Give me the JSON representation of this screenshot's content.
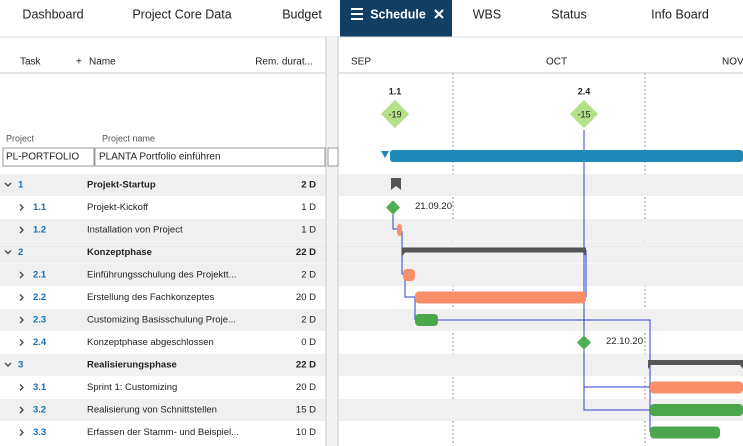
{
  "tabs": [
    "Dashboard",
    "Project Core Data",
    "Budget",
    "Schedule",
    "WBS",
    "Status",
    "Info Board"
  ],
  "columns": {
    "task": "Task",
    "add": "+",
    "name": "Name",
    "duration": "Rem. durat..."
  },
  "project": {
    "label_id": "Project",
    "label_name": "Project name",
    "id": "PL-PORTFOLIO",
    "name": "PLANTA Portfolio einführen"
  },
  "timeline": {
    "months": [
      "SEP",
      "OCT",
      "NOV"
    ],
    "milestones": [
      {
        "label": "1.1",
        "value": "-19"
      },
      {
        "label": "2.4",
        "value": "-15"
      }
    ]
  },
  "tasks": [
    {
      "id": "1",
      "name": "Projekt-Startup",
      "duration": "2 D"
    },
    {
      "id": "1.1",
      "name": "Projekt-Kickoff",
      "duration": "1 D",
      "date": "21.09.20"
    },
    {
      "id": "1.2",
      "name": "Installation von Project",
      "duration": "1 D"
    },
    {
      "id": "2",
      "name": "Konzeptphase",
      "duration": "22 D"
    },
    {
      "id": "2.1",
      "name": "Einführungsschulung des Projektt...",
      "duration": "2 D"
    },
    {
      "id": "2.2",
      "name": "Erstellung des Fachkonzeptes",
      "duration": "20 D"
    },
    {
      "id": "2.3",
      "name": "Customizing Basisschulung Proje...",
      "duration": "2 D"
    },
    {
      "id": "2.4",
      "name": "Konzeptphase abgeschlossen",
      "duration": "0 D",
      "date": "22.10.20"
    },
    {
      "id": "3",
      "name": "Realisierungsphase",
      "duration": "22 D"
    },
    {
      "id": "3.1",
      "name": "Sprint 1: Customizing",
      "duration": "20 D"
    },
    {
      "id": "3.2",
      "name": "Realisierung von Schnittstellen",
      "duration": "15 D"
    },
    {
      "id": "3.3",
      "name": "Erfassen der Stamm- und Beispiel...",
      "duration": "10 D"
    }
  ]
}
